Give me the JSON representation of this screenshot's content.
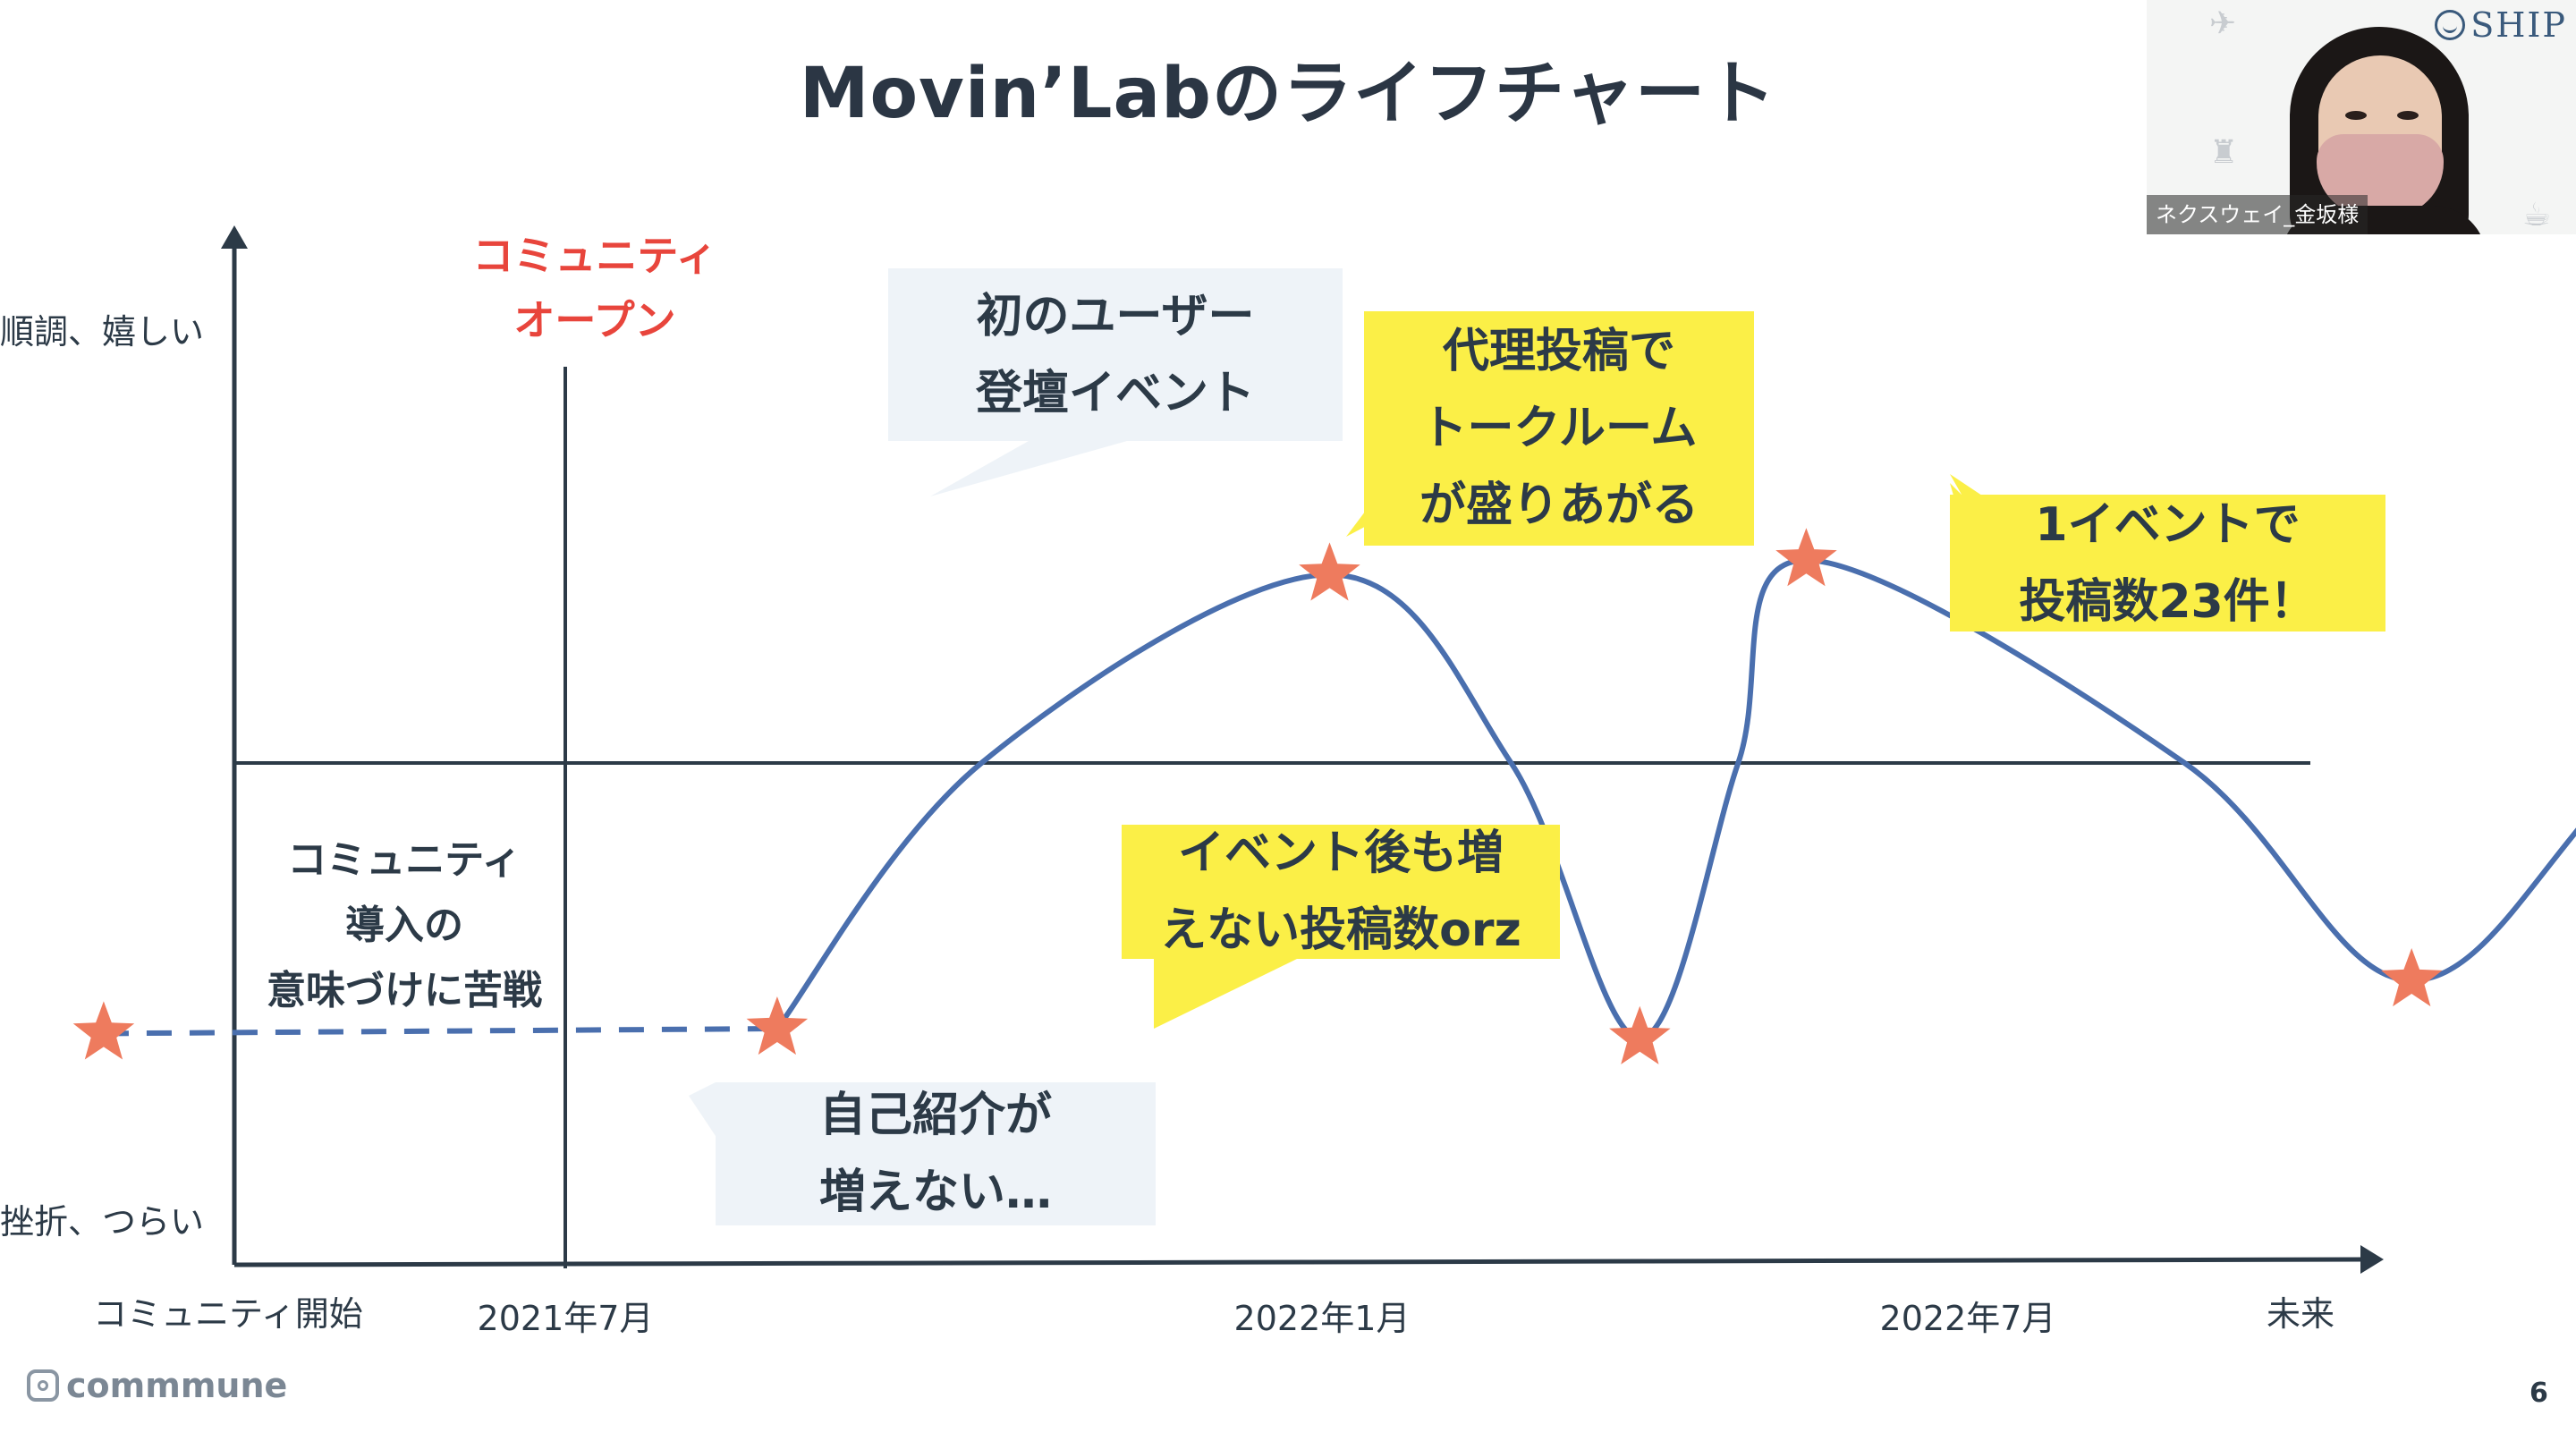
{
  "title": "Movin’Labのライフチャート",
  "chart_data": {
    "type": "line",
    "y_axis": {
      "high_label": "順調、嬉しい",
      "low_label": "挫折、つらい"
    },
    "x_ticks": [
      "コミュニティ開始",
      "2021年7月",
      "2022年1月",
      "2022年7月",
      "未来"
    ],
    "x_values": [
      0,
      1,
      2,
      3,
      4
    ],
    "series": [
      {
        "style": "dashed",
        "points": [
          [
            0.39,
            -0.56
          ],
          [
            1.28,
            -0.55
          ]
        ]
      },
      {
        "style": "solid",
        "points": [
          [
            1.28,
            -0.55
          ],
          [
            1.55,
            0.0
          ],
          [
            2.01,
            0.39
          ],
          [
            2.25,
            0.0
          ],
          [
            2.42,
            -0.57
          ],
          [
            2.55,
            0.0
          ],
          [
            2.64,
            0.42
          ],
          [
            3.14,
            0.0
          ],
          [
            3.44,
            -0.45
          ],
          [
            3.74,
            0.0
          ],
          [
            4.22,
            0.71
          ]
        ]
      }
    ],
    "star_markers": [
      [
        0.39,
        -0.56
      ],
      [
        1.28,
        -0.55
      ],
      [
        2.01,
        0.39
      ],
      [
        2.42,
        -0.57
      ],
      [
        2.64,
        0.42
      ],
      [
        3.44,
        -0.45
      ],
      [
        4.22,
        0.71
      ]
    ],
    "vertical_marker": {
      "x": 1,
      "label": [
        "コミュニティ",
        "オープン"
      ]
    },
    "phase_label": [
      "コミュニティ",
      "導入の",
      "意味づけに苦戦"
    ],
    "annotations": [
      {
        "lines": [
          "初のユーザー",
          "登壇イベント"
        ],
        "style": "blue"
      },
      {
        "lines": [
          "代理投稿で",
          "トークルーム",
          "が盛りあがる"
        ],
        "style": "yellow"
      },
      {
        "lines": [
          "1イベントで",
          "投稿数23件！"
        ],
        "style": "yellow"
      },
      {
        "lines": [
          "イベント後も増",
          "えない投稿数orz"
        ],
        "style": "yellow"
      },
      {
        "lines": [
          "自己紹介が",
          "増えない…"
        ],
        "style": "blue"
      }
    ],
    "colors": {
      "line": "#4a6fae",
      "star": "#ee7b5e",
      "axis": "#2c3a47",
      "marker_label": "#e8453c",
      "callout_yellow": "#fbef47",
      "callout_blue": "#eef3f8"
    }
  },
  "footer": {
    "logo": "commmune",
    "page_number": "6"
  },
  "video": {
    "participant_name": "ネクスウェイ_金坂様",
    "brand": "SHIP"
  }
}
